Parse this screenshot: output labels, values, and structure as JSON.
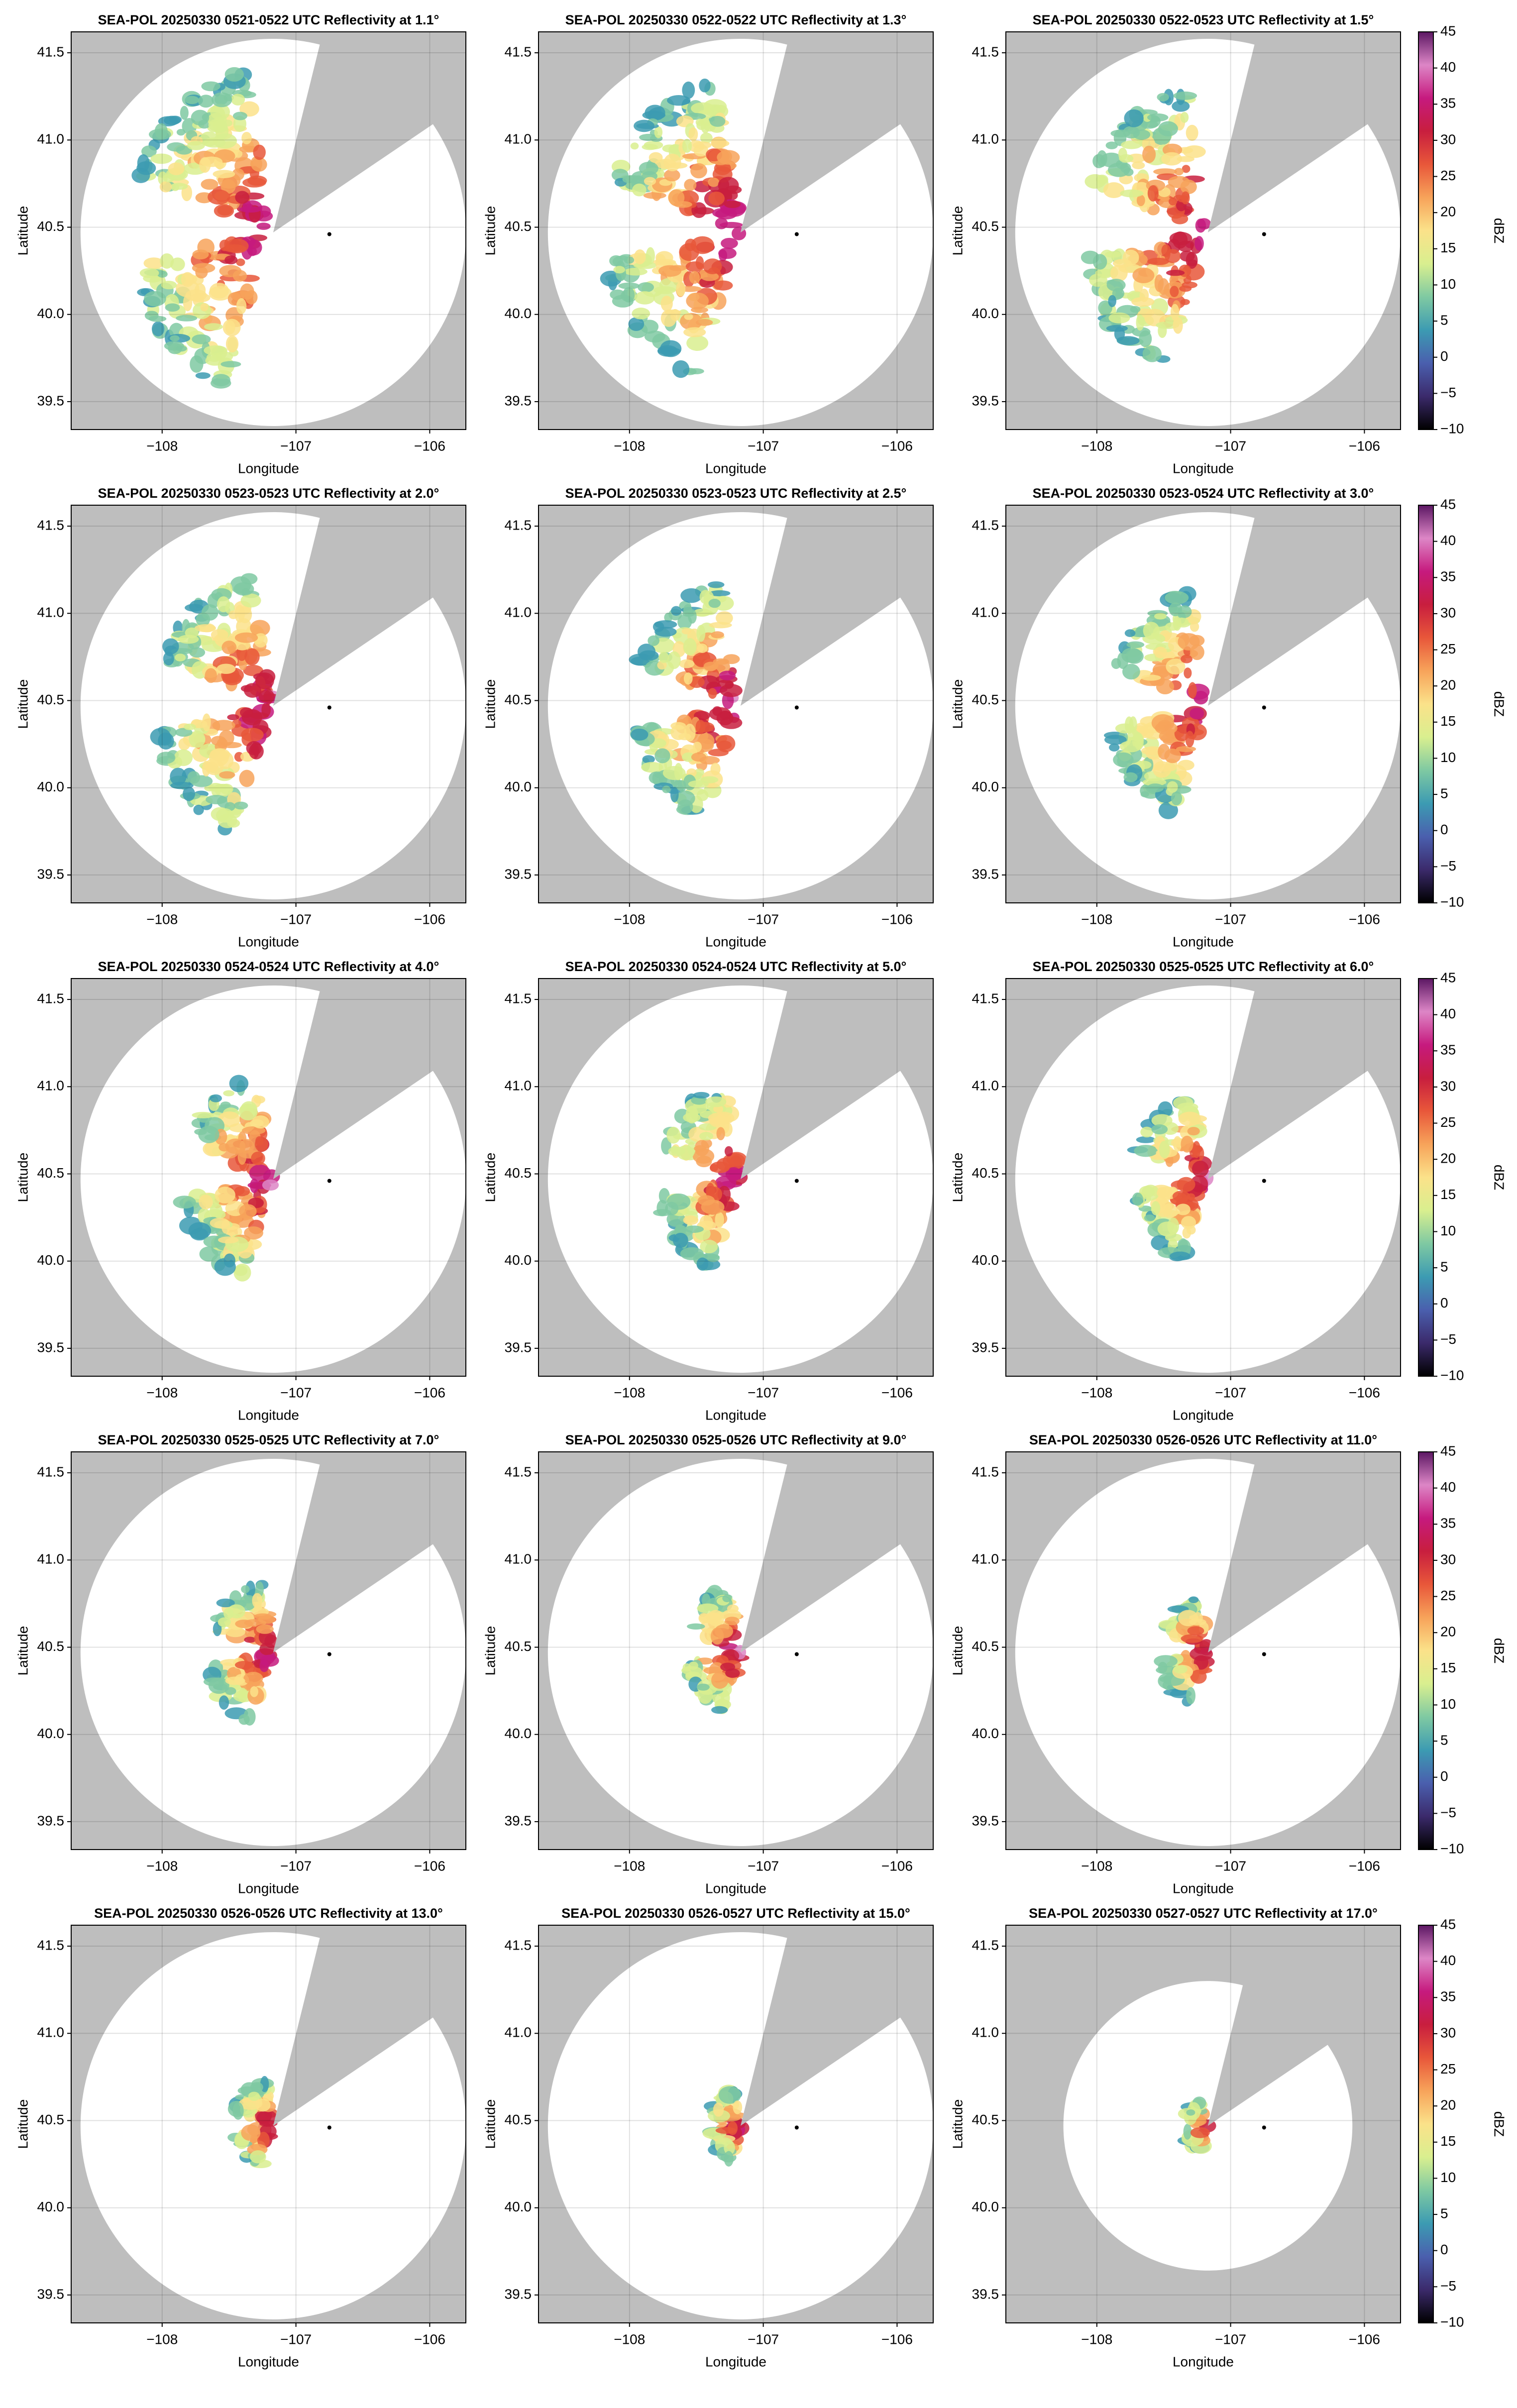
{
  "chart_data": [
    {
      "type": "ppi",
      "title": "SEA-POL 20250330 0521-0522 UTC Reflectivity at 1.1°",
      "xlabel": "Longitude",
      "ylabel": "Latitude",
      "xlim": [
        -108.68,
        -105.73
      ],
      "ylim": [
        39.34,
        41.62
      ],
      "xticks": [
        {
          "value": -108,
          "label": "−108"
        },
        {
          "value": -107,
          "label": "−107"
        },
        {
          "value": -106,
          "label": "−106"
        }
      ],
      "yticks": [
        39.5,
        {
          "value": 40,
          "label": "40.0"
        },
        40.5,
        {
          "value": 41,
          "label": "41.0"
        },
        41.5
      ],
      "grid": true
    },
    {
      "type": "ppi",
      "title": "SEA-POL 20250330 0522-0522 UTC Reflectivity at 1.3°",
      "xlabel": "Longitude",
      "ylabel": "Latitude",
      "xlim": [
        -108.68,
        -105.73
      ],
      "ylim": [
        39.34,
        41.62
      ],
      "xticks": [
        {
          "value": -108,
          "label": "−108"
        },
        {
          "value": -107,
          "label": "−107"
        },
        {
          "value": -106,
          "label": "−106"
        }
      ],
      "yticks": [
        39.5,
        {
          "value": 40,
          "label": "40.0"
        },
        40.5,
        {
          "value": 41,
          "label": "41.0"
        },
        41.5
      ],
      "grid": true
    },
    {
      "type": "ppi",
      "title": "SEA-POL 20250330 0522-0523 UTC Reflectivity at 1.5°",
      "xlabel": "Longitude",
      "ylabel": "Latitude",
      "xlim": [
        -108.68,
        -105.73
      ],
      "ylim": [
        39.34,
        41.62
      ],
      "xticks": [
        {
          "value": -108,
          "label": "−108"
        },
        {
          "value": -107,
          "label": "−107"
        },
        {
          "value": -106,
          "label": "−106"
        }
      ],
      "yticks": [
        39.5,
        {
          "value": 40,
          "label": "40.0"
        },
        40.5,
        {
          "value": 41,
          "label": "41.0"
        },
        41.5
      ],
      "grid": true,
      "colorbar": {
        "label": "dBZ",
        "lim": [
          -10,
          45
        ],
        "ticks": [
          {
            "value": -10,
            "label": "−10"
          },
          {
            "value": -5,
            "label": "−5"
          },
          0,
          5,
          10,
          15,
          20,
          25,
          30,
          35,
          40,
          45
        ],
        "colormap": [
          "#000000",
          "#3b2a6b",
          "#4a5fae",
          "#3c9bb2",
          "#7fc9a2",
          "#d9ef8f",
          "#fbe28a",
          "#f7a35a",
          "#e8573a",
          "#c81e3e",
          "#c61a7e",
          "#dd86c6",
          "#5c1763"
        ]
      }
    },
    {
      "type": "ppi",
      "title": "SEA-POL 20250330 0523-0523 UTC Reflectivity at 2.0°",
      "xlabel": "Longitude",
      "ylabel": "Latitude",
      "xlim": [
        -108.68,
        -105.73
      ],
      "ylim": [
        39.34,
        41.62
      ],
      "xticks": [
        {
          "value": -108,
          "label": "−108"
        },
        {
          "value": -107,
          "label": "−107"
        },
        {
          "value": -106,
          "label": "−106"
        }
      ],
      "yticks": [
        39.5,
        {
          "value": 40,
          "label": "40.0"
        },
        40.5,
        {
          "value": 41,
          "label": "41.0"
        },
        41.5
      ],
      "grid": true
    },
    {
      "type": "ppi",
      "title": "SEA-POL 20250330 0523-0523 UTC Reflectivity at 2.5°",
      "xlabel": "Longitude",
      "ylabel": "Latitude",
      "xlim": [
        -108.68,
        -105.73
      ],
      "ylim": [
        39.34,
        41.62
      ],
      "xticks": [
        {
          "value": -108,
          "label": "−108"
        },
        {
          "value": -107,
          "label": "−107"
        },
        {
          "value": -106,
          "label": "−106"
        }
      ],
      "yticks": [
        39.5,
        {
          "value": 40,
          "label": "40.0"
        },
        40.5,
        {
          "value": 41,
          "label": "41.0"
        },
        41.5
      ],
      "grid": true
    },
    {
      "type": "ppi",
      "title": "SEA-POL 20250330 0523-0524 UTC Reflectivity at 3.0°",
      "xlabel": "Longitude",
      "ylabel": "Latitude",
      "xlim": [
        -108.68,
        -105.73
      ],
      "ylim": [
        39.34,
        41.62
      ],
      "xticks": [
        {
          "value": -108,
          "label": "−108"
        },
        {
          "value": -107,
          "label": "−107"
        },
        {
          "value": -106,
          "label": "−106"
        }
      ],
      "yticks": [
        39.5,
        {
          "value": 40,
          "label": "40.0"
        },
        40.5,
        {
          "value": 41,
          "label": "41.0"
        },
        41.5
      ],
      "grid": true,
      "colorbar": {
        "label": "dBZ",
        "lim": [
          -10,
          45
        ],
        "ticks": [
          {
            "value": -10,
            "label": "−10"
          },
          {
            "value": -5,
            "label": "−5"
          },
          0,
          5,
          10,
          15,
          20,
          25,
          30,
          35,
          40,
          45
        ],
        "colormap": [
          "#000000",
          "#3b2a6b",
          "#4a5fae",
          "#3c9bb2",
          "#7fc9a2",
          "#d9ef8f",
          "#fbe28a",
          "#f7a35a",
          "#e8573a",
          "#c81e3e",
          "#c61a7e",
          "#dd86c6",
          "#5c1763"
        ]
      }
    },
    {
      "type": "ppi",
      "title": "SEA-POL 20250330 0524-0524 UTC Reflectivity at 4.0°",
      "xlabel": "Longitude",
      "ylabel": "Latitude",
      "xlim": [
        -108.68,
        -105.73
      ],
      "ylim": [
        39.34,
        41.62
      ],
      "xticks": [
        {
          "value": -108,
          "label": "−108"
        },
        {
          "value": -107,
          "label": "−107"
        },
        {
          "value": -106,
          "label": "−106"
        }
      ],
      "yticks": [
        39.5,
        {
          "value": 40,
          "label": "40.0"
        },
        40.5,
        {
          "value": 41,
          "label": "41.0"
        },
        41.5
      ],
      "grid": true
    },
    {
      "type": "ppi",
      "title": "SEA-POL 20250330 0524-0524 UTC Reflectivity at 5.0°",
      "xlabel": "Longitude",
      "ylabel": "Latitude",
      "xlim": [
        -108.68,
        -105.73
      ],
      "ylim": [
        39.34,
        41.62
      ],
      "xticks": [
        {
          "value": -108,
          "label": "−108"
        },
        {
          "value": -107,
          "label": "−107"
        },
        {
          "value": -106,
          "label": "−106"
        }
      ],
      "yticks": [
        39.5,
        {
          "value": 40,
          "label": "40.0"
        },
        40.5,
        {
          "value": 41,
          "label": "41.0"
        },
        41.5
      ],
      "grid": true
    },
    {
      "type": "ppi",
      "title": "SEA-POL 20250330 0525-0525 UTC Reflectivity at 6.0°",
      "xlabel": "Longitude",
      "ylabel": "Latitude",
      "xlim": [
        -108.68,
        -105.73
      ],
      "ylim": [
        39.34,
        41.62
      ],
      "xticks": [
        {
          "value": -108,
          "label": "−108"
        },
        {
          "value": -107,
          "label": "−107"
        },
        {
          "value": -106,
          "label": "−106"
        }
      ],
      "yticks": [
        39.5,
        {
          "value": 40,
          "label": "40.0"
        },
        40.5,
        {
          "value": 41,
          "label": "41.0"
        },
        41.5
      ],
      "grid": true,
      "colorbar": {
        "label": "dBZ",
        "lim": [
          -10,
          45
        ],
        "ticks": [
          {
            "value": -10,
            "label": "−10"
          },
          {
            "value": -5,
            "label": "−5"
          },
          0,
          5,
          10,
          15,
          20,
          25,
          30,
          35,
          40,
          45
        ],
        "colormap": [
          "#000000",
          "#3b2a6b",
          "#4a5fae",
          "#3c9bb2",
          "#7fc9a2",
          "#d9ef8f",
          "#fbe28a",
          "#f7a35a",
          "#e8573a",
          "#c81e3e",
          "#c61a7e",
          "#dd86c6",
          "#5c1763"
        ]
      }
    },
    {
      "type": "ppi",
      "title": "SEA-POL 20250330 0525-0525 UTC Reflectivity at 7.0°",
      "xlabel": "Longitude",
      "ylabel": "Latitude",
      "xlim": [
        -108.68,
        -105.73
      ],
      "ylim": [
        39.34,
        41.62
      ],
      "xticks": [
        {
          "value": -108,
          "label": "−108"
        },
        {
          "value": -107,
          "label": "−107"
        },
        {
          "value": -106,
          "label": "−106"
        }
      ],
      "yticks": [
        39.5,
        {
          "value": 40,
          "label": "40.0"
        },
        40.5,
        {
          "value": 41,
          "label": "41.0"
        },
        41.5
      ],
      "grid": true
    },
    {
      "type": "ppi",
      "title": "SEA-POL 20250330 0525-0526 UTC Reflectivity at 9.0°",
      "xlabel": "Longitude",
      "ylabel": "Latitude",
      "xlim": [
        -108.68,
        -105.73
      ],
      "ylim": [
        39.34,
        41.62
      ],
      "xticks": [
        {
          "value": -108,
          "label": "−108"
        },
        {
          "value": -107,
          "label": "−107"
        },
        {
          "value": -106,
          "label": "−106"
        }
      ],
      "yticks": [
        39.5,
        {
          "value": 40,
          "label": "40.0"
        },
        40.5,
        {
          "value": 41,
          "label": "41.0"
        },
        41.5
      ],
      "grid": true
    },
    {
      "type": "ppi",
      "title": "SEA-POL 20250330 0526-0526 UTC Reflectivity at 11.0°",
      "xlabel": "Longitude",
      "ylabel": "Latitude",
      "xlim": [
        -108.68,
        -105.73
      ],
      "ylim": [
        39.34,
        41.62
      ],
      "xticks": [
        {
          "value": -108,
          "label": "−108"
        },
        {
          "value": -107,
          "label": "−107"
        },
        {
          "value": -106,
          "label": "−106"
        }
      ],
      "yticks": [
        39.5,
        {
          "value": 40,
          "label": "40.0"
        },
        40.5,
        {
          "value": 41,
          "label": "41.0"
        },
        41.5
      ],
      "grid": true,
      "colorbar": {
        "label": "dBZ",
        "lim": [
          -10,
          45
        ],
        "ticks": [
          {
            "value": -10,
            "label": "−10"
          },
          {
            "value": -5,
            "label": "−5"
          },
          0,
          5,
          10,
          15,
          20,
          25,
          30,
          35,
          40,
          45
        ],
        "colormap": [
          "#000000",
          "#3b2a6b",
          "#4a5fae",
          "#3c9bb2",
          "#7fc9a2",
          "#d9ef8f",
          "#fbe28a",
          "#f7a35a",
          "#e8573a",
          "#c81e3e",
          "#c61a7e",
          "#dd86c6",
          "#5c1763"
        ]
      }
    },
    {
      "type": "ppi",
      "title": "SEA-POL 20250330 0526-0526 UTC Reflectivity at 13.0°",
      "xlabel": "Longitude",
      "ylabel": "Latitude",
      "xlim": [
        -108.68,
        -105.73
      ],
      "ylim": [
        39.34,
        41.62
      ],
      "xticks": [
        {
          "value": -108,
          "label": "−108"
        },
        {
          "value": -107,
          "label": "−107"
        },
        {
          "value": -106,
          "label": "−106"
        }
      ],
      "yticks": [
        39.5,
        {
          "value": 40,
          "label": "40.0"
        },
        40.5,
        {
          "value": 41,
          "label": "41.0"
        },
        41.5
      ],
      "grid": true
    },
    {
      "type": "ppi",
      "title": "SEA-POL 20250330 0526-0527 UTC Reflectivity at 15.0°",
      "xlabel": "Longitude",
      "ylabel": "Latitude",
      "xlim": [
        -108.68,
        -105.73
      ],
      "ylim": [
        39.34,
        41.62
      ],
      "xticks": [
        {
          "value": -108,
          "label": "−108"
        },
        {
          "value": -107,
          "label": "−107"
        },
        {
          "value": -106,
          "label": "−106"
        }
      ],
      "yticks": [
        39.5,
        {
          "value": 40,
          "label": "40.0"
        },
        40.5,
        {
          "value": 41,
          "label": "41.0"
        },
        41.5
      ],
      "grid": true
    },
    {
      "type": "ppi",
      "title": "SEA-POL 20250330 0527-0527 UTC Reflectivity at 17.0°",
      "xlabel": "Longitude",
      "ylabel": "Latitude",
      "xlim": [
        -108.68,
        -105.73
      ],
      "ylim": [
        39.34,
        41.62
      ],
      "xticks": [
        {
          "value": -108,
          "label": "−108"
        },
        {
          "value": -107,
          "label": "−107"
        },
        {
          "value": -106,
          "label": "−106"
        }
      ],
      "yticks": [
        39.5,
        {
          "value": 40,
          "label": "40.0"
        },
        40.5,
        {
          "value": 41,
          "label": "41.0"
        },
        41.5
      ],
      "grid": true,
      "colorbar": {
        "label": "dBZ",
        "lim": [
          -10,
          45
        ],
        "ticks": [
          {
            "value": -10,
            "label": "−10"
          },
          {
            "value": -5,
            "label": "−5"
          },
          0,
          5,
          10,
          15,
          20,
          25,
          30,
          35,
          40,
          45
        ],
        "colormap": [
          "#000000",
          "#3b2a6b",
          "#4a5fae",
          "#3c9bb2",
          "#7fc9a2",
          "#d9ef8f",
          "#fbe28a",
          "#f7a35a",
          "#e8573a",
          "#c81e3e",
          "#c61a7e",
          "#dd86c6",
          "#5c1763"
        ]
      }
    }
  ]
}
